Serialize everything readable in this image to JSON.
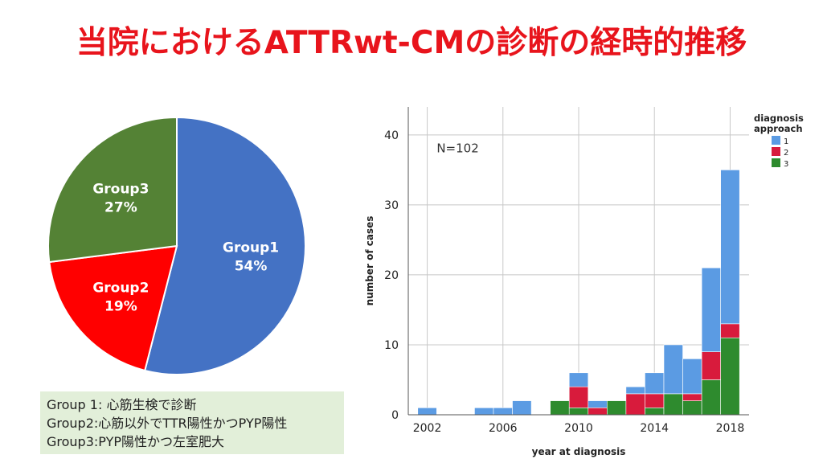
{
  "title": "当院におけるATTRwt-CMの診断の経時的推移",
  "legend_box": [
    "Group 1: 心筋生検で診断",
    "Group2:心筋以外でTTR陽性かつPYP陽性",
    "Group3:PYP陽性かつ左室肥大"
  ],
  "chart_data": [
    {
      "type": "pie",
      "slices": [
        {
          "label": "Group1",
          "pct_label": "54%",
          "value": 54,
          "color": "#4472c4"
        },
        {
          "label": "Group2",
          "pct_label": "19%",
          "value": 19,
          "color": "#ff0000"
        },
        {
          "label": "Group3",
          "pct_label": "27%",
          "value": 27,
          "color": "#548235"
        }
      ]
    },
    {
      "type": "bar",
      "stacked": true,
      "xlabel": "year at diagnosis",
      "ylabel": "number of cases",
      "annotation": "N=102",
      "legend_title": [
        "diagnosis",
        "approach"
      ],
      "x_ticks": [
        "2002",
        "2006",
        "2010",
        "2014",
        "2018"
      ],
      "y_ticks": [
        "0",
        "10",
        "20",
        "30",
        "40"
      ],
      "ylim": [
        0,
        44
      ],
      "xlim": [
        2001,
        2019
      ],
      "grid": true,
      "legend_position": "top-right",
      "years": [
        2002,
        2005,
        2006,
        2007,
        2009,
        2010,
        2011,
        2012,
        2013,
        2014,
        2015,
        2016,
        2017,
        2018
      ],
      "series": [
        {
          "name": "3",
          "color": "#2e8b2e",
          "values": [
            0,
            0,
            0,
            0,
            2,
            1,
            0,
            2,
            0,
            1,
            3,
            2,
            5,
            11
          ]
        },
        {
          "name": "2",
          "color": "#d81b3c",
          "values": [
            0,
            0,
            0,
            0,
            0,
            3,
            1,
            0,
            3,
            2,
            0,
            1,
            4,
            2
          ]
        },
        {
          "name": "1",
          "color": "#5b9be3",
          "values": [
            1,
            1,
            1,
            2,
            0,
            2,
            1,
            0,
            1,
            3,
            7,
            5,
            12,
            22
          ]
        }
      ]
    }
  ]
}
